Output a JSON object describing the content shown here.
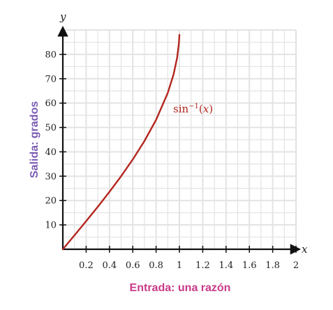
{
  "chart_data": {
    "type": "line",
    "xlabel": "Entrada: una razón",
    "ylabel": "Salida: grados",
    "x_var": "x",
    "y_var": "y",
    "xlim": [
      0,
      2
    ],
    "ylim": [
      0,
      90
    ],
    "x_ticks": [
      0.2,
      0.4,
      0.6,
      0.8,
      1,
      1.2,
      1.4,
      1.6,
      1.8,
      2
    ],
    "x_tick_labels": [
      "0.2",
      "0.4",
      "0.6",
      "0.8",
      "1",
      "1.2",
      "1.4",
      "1.6",
      "1.8",
      "2"
    ],
    "y_ticks": [
      10,
      20,
      30,
      40,
      50,
      60,
      70,
      80
    ],
    "y_tick_labels": [
      "10",
      "20",
      "30",
      "40",
      "50",
      "60",
      "70",
      "80"
    ],
    "grid": true,
    "series": [
      {
        "name": "sin⁻¹(x)",
        "label_func": "sin",
        "label_exp": "−1",
        "label_arg": "x",
        "color": "#b3261e",
        "x": [
          0,
          0.1,
          0.2,
          0.3,
          0.4,
          0.5,
          0.6,
          0.7,
          0.8,
          0.9,
          0.95,
          0.98,
          0.995,
          1
        ],
        "y": [
          0,
          5.74,
          11.54,
          17.46,
          23.58,
          30,
          36.87,
          44.43,
          53.13,
          64.16,
          71.81,
          78.52,
          84.27,
          88
        ]
      }
    ],
    "colors": {
      "axis": "#111111",
      "grid": "#e3e3e3",
      "curve": "#b3261e",
      "xlabel": "#c93a88",
      "ylabel": "#7a5bb3"
    }
  }
}
